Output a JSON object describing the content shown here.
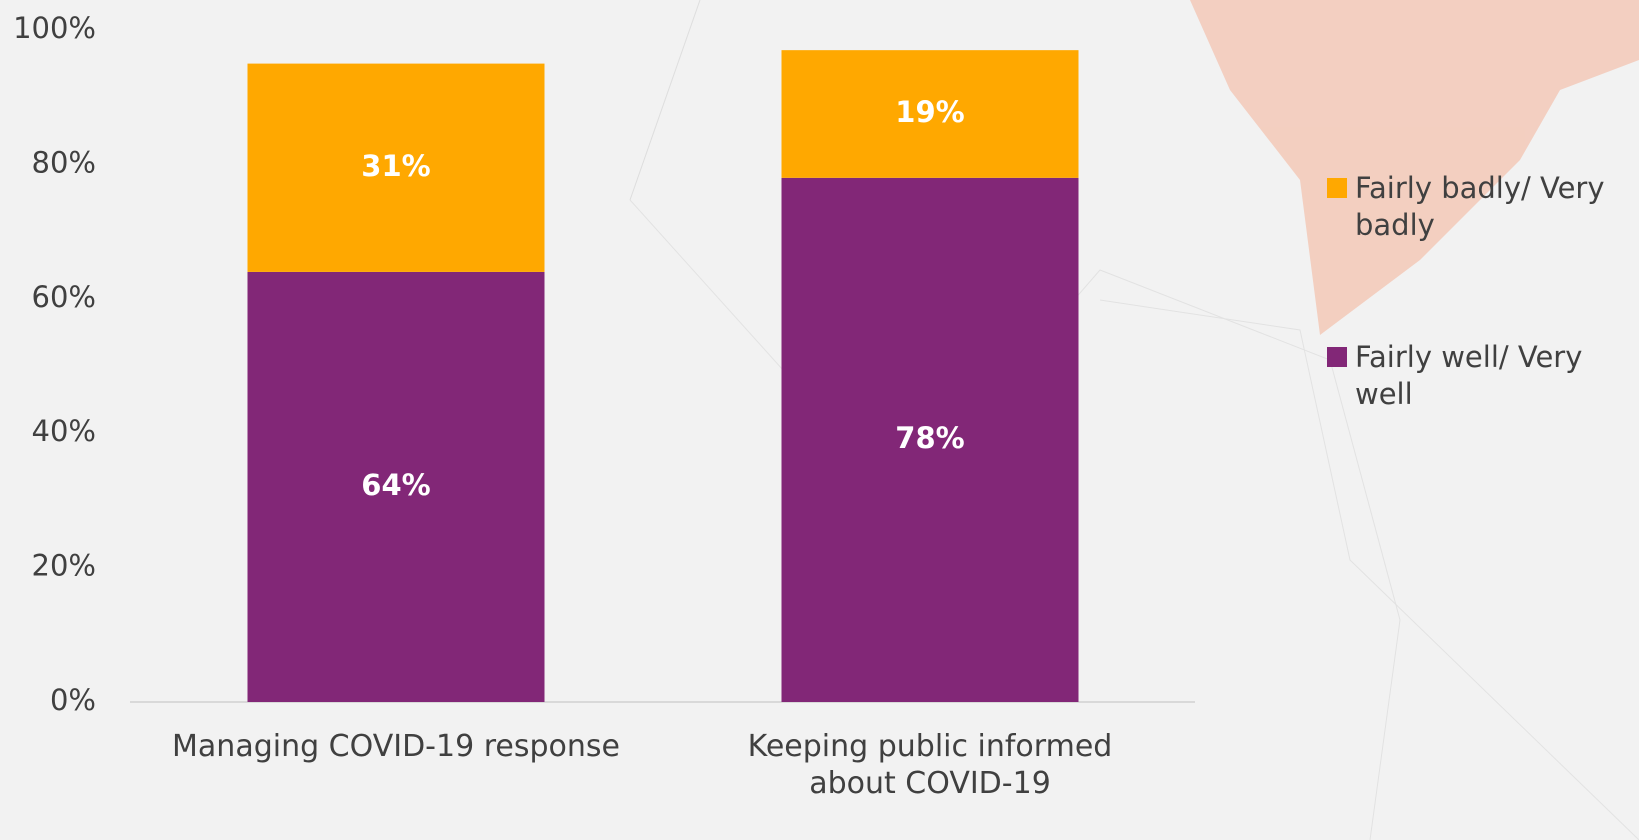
{
  "chart_data": {
    "type": "stacked-bar",
    "categories": [
      "Managing COVID-19 response",
      "Keeping public informed about COVID-19"
    ],
    "series": [
      {
        "name": "Fairly well/ Very well",
        "color": "#822777",
        "values": [
          64,
          78
        ],
        "value_labels": [
          "64%",
          "78%"
        ]
      },
      {
        "name": "Fairly badly/ Very badly",
        "color": "#ffa800",
        "values": [
          31,
          19
        ],
        "value_labels": [
          "31%",
          "19%"
        ]
      }
    ],
    "ylim": [
      0,
      100
    ],
    "yticks": [
      {
        "value": 0,
        "label": "0%"
      },
      {
        "value": 20,
        "label": "20%"
      },
      {
        "value": 40,
        "label": "40%"
      },
      {
        "value": 60,
        "label": "60%"
      },
      {
        "value": 80,
        "label": "80%"
      },
      {
        "value": 100,
        "label": "100%"
      }
    ],
    "legend": "right"
  }
}
